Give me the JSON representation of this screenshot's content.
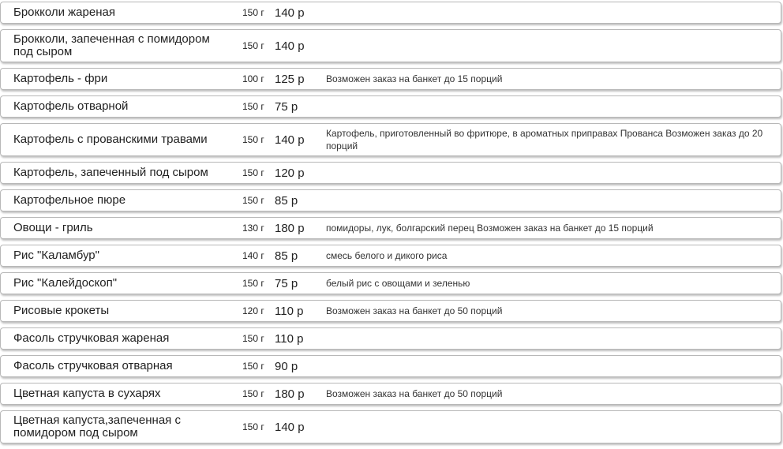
{
  "items": [
    {
      "name": "Брокколи жареная",
      "weight": "150 г",
      "price": "140 р"
    },
    {
      "name": "Брокколи, запеченная с помидором под сыром",
      "weight": "150 г",
      "price": "140 р"
    },
    {
      "name": "Картофель - фри",
      "weight": "100 г",
      "price": "125 р",
      "description": "Возможен заказ на банкет до 15 порций"
    },
    {
      "name": "Картофель отварной",
      "weight": "150 г",
      "price": "75 р"
    },
    {
      "name": "Картофель с прованскими травами",
      "weight": "150 г",
      "price": "140 р",
      "description": "Картофель, приготовленный во фритюре, в ароматных приправах Прованса Возможен заказ до 20 порций"
    },
    {
      "name": "Картофель, запеченный под сыром",
      "weight": "150 г",
      "price": "120 р"
    },
    {
      "name": "Картофельное пюре",
      "weight": "150 г",
      "price": "85 р"
    },
    {
      "name": "Овощи - гриль",
      "weight": "130 г",
      "price": "180 р",
      "description": "помидоры, лук, болгарский перец Возможен заказ на банкет до 15 порций"
    },
    {
      "name": "Рис \"Каламбур\"",
      "weight": "140 г",
      "price": "85 р",
      "description": "смесь белого и дикого риса"
    },
    {
      "name": "Рис \"Калейдоскоп\"",
      "weight": "150 г",
      "price": "75 р",
      "description": "белый рис с овощами и зеленью"
    },
    {
      "name": "Рисовые крокеты",
      "weight": "120 г",
      "price": "110 р",
      "description": "Возможен заказ на банкет до 50 порций"
    },
    {
      "name": "Фасоль стручковая жареная",
      "weight": "150 г",
      "price": "110 р"
    },
    {
      "name": "Фасоль стручковая отварная",
      "weight": "150 г",
      "price": "90 р"
    },
    {
      "name": "Цветная капуста в сухарях",
      "weight": "150 г",
      "price": "180 р",
      "description": "Возможен заказ на банкет до 50 порций"
    },
    {
      "name": "Цветная капуста,запеченная с помидором под сыром",
      "weight": "150 г",
      "price": "140 р"
    }
  ]
}
